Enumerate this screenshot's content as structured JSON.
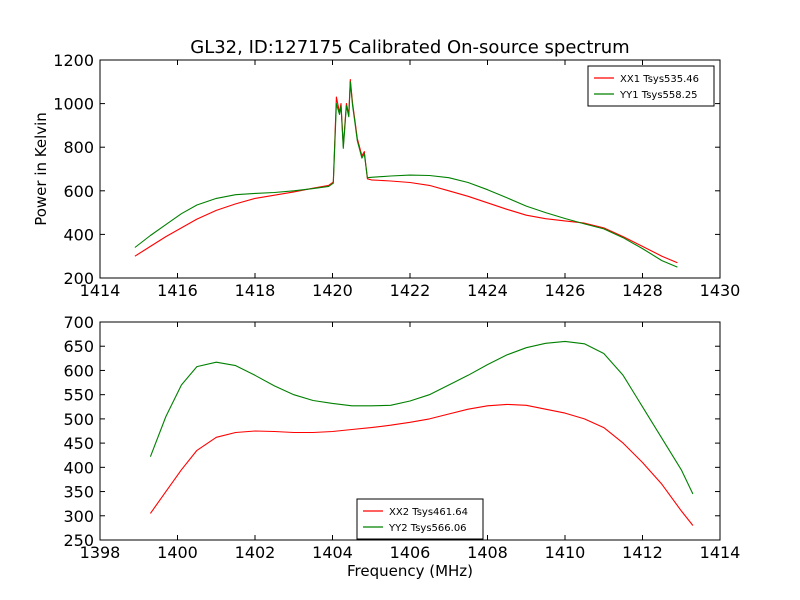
{
  "figure": {
    "title": "GL32, ID:127175 Calibrated On-source spectrum"
  },
  "chart_data": [
    {
      "type": "line",
      "title": "GL32, ID:127175 Calibrated On-source spectrum",
      "xlabel": "",
      "ylabel": "Power in Kelvin",
      "xlim": [
        1414,
        1430
      ],
      "ylim": [
        200,
        1200
      ],
      "xticks": [
        1414,
        1416,
        1418,
        1420,
        1422,
        1424,
        1426,
        1428,
        1430
      ],
      "yticks": [
        200,
        400,
        600,
        800,
        1000,
        1200
      ],
      "grid": false,
      "legend": "top-right",
      "series": [
        {
          "name": "XX1 Tsys535.46",
          "color": "#ff0000",
          "x": [
            1414.9,
            1415.3,
            1415.7,
            1416.1,
            1416.5,
            1417.0,
            1417.5,
            1418.0,
            1418.5,
            1419.0,
            1419.5,
            1419.9,
            1420.02,
            1420.1,
            1420.18,
            1420.22,
            1420.28,
            1420.36,
            1420.42,
            1420.46,
            1420.52,
            1420.58,
            1420.64,
            1420.7,
            1420.76,
            1420.82,
            1420.9,
            1421.0,
            1421.5,
            1422.0,
            1422.5,
            1423.0,
            1423.5,
            1424.0,
            1424.5,
            1425.0,
            1425.5,
            1426.0,
            1426.5,
            1427.0,
            1427.5,
            1428.0,
            1428.5,
            1428.9
          ],
          "values": [
            300,
            345,
            390,
            430,
            470,
            510,
            540,
            565,
            580,
            595,
            612,
            625,
            640,
            1030,
            960,
            1000,
            805,
            1000,
            950,
            1110,
            1000,
            920,
            840,
            800,
            760,
            780,
            655,
            650,
            645,
            638,
            625,
            600,
            575,
            545,
            515,
            488,
            472,
            462,
            452,
            430,
            390,
            345,
            300,
            270
          ]
        },
        {
          "name": "YY1 Tsys558.25",
          "color": "#008000",
          "x": [
            1414.9,
            1415.3,
            1415.7,
            1416.1,
            1416.5,
            1417.0,
            1417.5,
            1418.0,
            1418.5,
            1419.0,
            1419.5,
            1419.9,
            1420.02,
            1420.1,
            1420.18,
            1420.22,
            1420.28,
            1420.36,
            1420.42,
            1420.46,
            1420.52,
            1420.58,
            1420.64,
            1420.7,
            1420.76,
            1420.82,
            1420.9,
            1421.0,
            1421.5,
            1422.0,
            1422.5,
            1423.0,
            1423.5,
            1424.0,
            1424.5,
            1425.0,
            1425.5,
            1426.0,
            1426.5,
            1427.0,
            1427.5,
            1428.0,
            1428.5,
            1428.9
          ],
          "values": [
            340,
            395,
            445,
            495,
            535,
            565,
            582,
            588,
            592,
            600,
            610,
            620,
            635,
            1000,
            950,
            990,
            795,
            990,
            940,
            1100,
            990,
            910,
            830,
            790,
            750,
            770,
            660,
            662,
            668,
            672,
            670,
            660,
            638,
            605,
            568,
            530,
            500,
            473,
            448,
            425,
            385,
            335,
            280,
            250
          ]
        }
      ]
    },
    {
      "type": "line",
      "title": "",
      "xlabel": "Frequency (MHz)",
      "ylabel": "",
      "xlim": [
        1398,
        1414
      ],
      "ylim": [
        250,
        700
      ],
      "xticks": [
        1398,
        1400,
        1402,
        1404,
        1406,
        1408,
        1410,
        1412,
        1414
      ],
      "yticks": [
        250,
        300,
        350,
        400,
        450,
        500,
        550,
        600,
        650,
        700
      ],
      "grid": false,
      "legend": "bottom-center",
      "series": [
        {
          "name": "XX2 Tsys461.64",
          "color": "#ff0000",
          "x": [
            1399.3,
            1399.7,
            1400.1,
            1400.5,
            1401.0,
            1401.5,
            1402.0,
            1402.5,
            1403.0,
            1403.5,
            1404.0,
            1404.5,
            1405.0,
            1405.5,
            1406.0,
            1406.5,
            1407.0,
            1407.5,
            1408.0,
            1408.5,
            1409.0,
            1409.5,
            1410.0,
            1410.5,
            1411.0,
            1411.5,
            1412.0,
            1412.5,
            1413.0,
            1413.3
          ],
          "values": [
            305,
            350,
            395,
            435,
            462,
            472,
            475,
            474,
            472,
            472,
            474,
            478,
            482,
            487,
            493,
            500,
            510,
            520,
            527,
            530,
            528,
            520,
            512,
            500,
            482,
            450,
            410,
            365,
            310,
            280
          ]
        },
        {
          "name": "YY2 Tsys566.06",
          "color": "#008000",
          "x": [
            1399.3,
            1399.7,
            1400.1,
            1400.5,
            1401.0,
            1401.5,
            1402.0,
            1402.5,
            1403.0,
            1403.5,
            1404.0,
            1404.5,
            1405.0,
            1405.5,
            1406.0,
            1406.5,
            1407.0,
            1407.5,
            1408.0,
            1408.5,
            1409.0,
            1409.5,
            1410.0,
            1410.5,
            1411.0,
            1411.5,
            1412.0,
            1412.5,
            1413.0,
            1413.3
          ],
          "values": [
            422,
            505,
            570,
            608,
            617,
            610,
            590,
            568,
            550,
            538,
            532,
            527,
            527,
            528,
            537,
            550,
            570,
            590,
            612,
            632,
            647,
            656,
            660,
            655,
            635,
            590,
            525,
            460,
            395,
            345
          ]
        }
      ]
    }
  ]
}
